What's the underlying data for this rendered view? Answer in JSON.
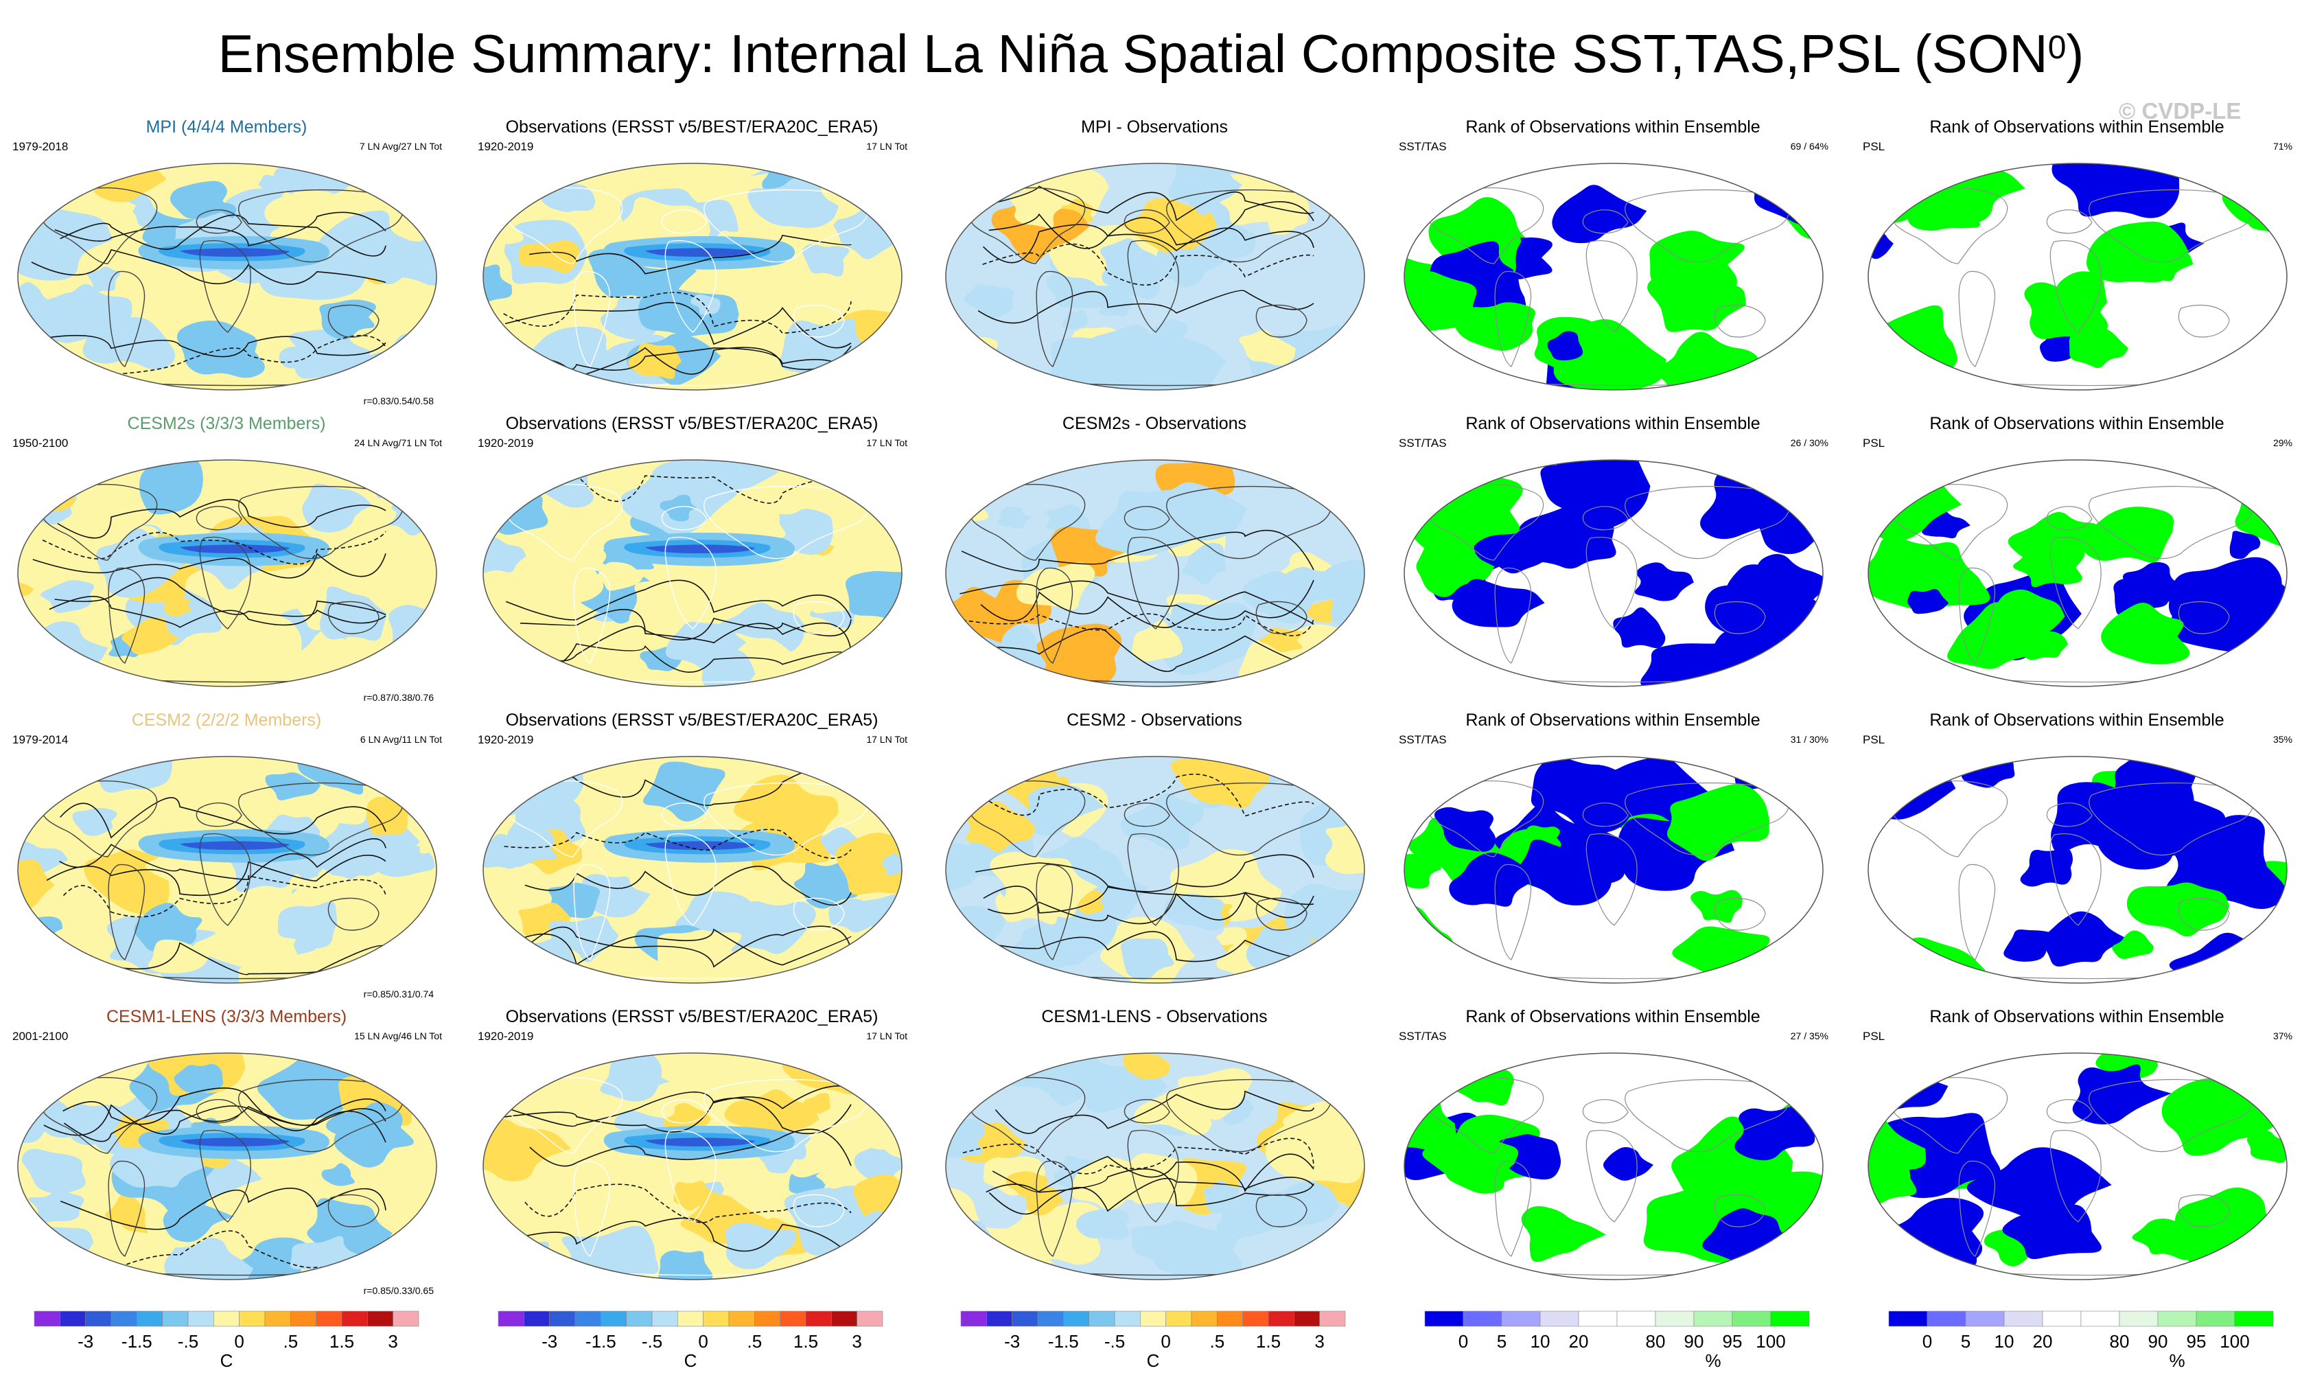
{
  "title_main": "Ensemble Summary: Internal La Niña Spatial Composite SST,TAS,PSL (SON",
  "title_sup": "0",
  "title_close": ")",
  "copyright": "© CVDP-LE",
  "colors": {
    "green": "#00ff00",
    "blue": "#0000e6",
    "coast_dark": "#444444",
    "coast_light": "#ffffff"
  },
  "rows": [
    {
      "model": {
        "title": "MPI (4/4/4 Members)",
        "title_color": "#1f6e9e",
        "period": "1979-2018",
        "count": "7 LN Avg/27 LN Tot",
        "corr": "r=0.83/0.54/0.58"
      },
      "obs": {
        "title": "Observations (ERSST v5/BEST/ERA20C_ERA5)",
        "period": "1920-2019",
        "count": "17 LN Tot"
      },
      "diff": {
        "title": "MPI - Observations"
      },
      "rank1": {
        "title": "Rank of Observations within Ensemble",
        "var": "SST/TAS",
        "pct": "69 /  64%"
      },
      "rank2": {
        "title": "Rank of Observations within Ensemble",
        "var": "PSL",
        "pct": "71%"
      }
    },
    {
      "model": {
        "title": "CESM2s (3/3/3 Members)",
        "title_color": "#5a9d6c",
        "period": "1950-2100",
        "count": "24 LN Avg/71 LN Tot",
        "corr": "r=0.87/0.38/0.76"
      },
      "obs": {
        "title": "Observations (ERSST v5/BEST/ERA20C_ERA5)",
        "period": "1920-2019",
        "count": "17 LN Tot"
      },
      "diff": {
        "title": "CESM2s - Observations"
      },
      "rank1": {
        "title": "Rank of Observations within Ensemble",
        "var": "SST/TAS",
        "pct": "26 /  30%"
      },
      "rank2": {
        "title": "Rank of Observations within Ensemble",
        "var": "PSL",
        "pct": "29%"
      }
    },
    {
      "model": {
        "title": "CESM2 (2/2/2 Members)",
        "title_color": "#e8c57a",
        "period": "1979-2014",
        "count": "6 LN Avg/11 LN Tot",
        "corr": "r=0.85/0.31/0.74"
      },
      "obs": {
        "title": "Observations (ERSST v5/BEST/ERA20C_ERA5)",
        "period": "1920-2019",
        "count": "17 LN Tot"
      },
      "diff": {
        "title": "CESM2 - Observations"
      },
      "rank1": {
        "title": "Rank of Observations within Ensemble",
        "var": "SST/TAS",
        "pct": "31 /  30%"
      },
      "rank2": {
        "title": "Rank of Observations within Ensemble",
        "var": "PSL",
        "pct": "35%"
      }
    },
    {
      "model": {
        "title": "CESM1-LENS (3/3/3 Members)",
        "title_color": "#9c3b1b",
        "period": "2001-2100",
        "count": "15 LN Avg/46 LN Tot",
        "corr": "r=0.85/0.33/0.65"
      },
      "obs": {
        "title": "Observations (ERSST v5/BEST/ERA20C_ERA5)",
        "period": "1920-2019",
        "count": "17 LN Tot"
      },
      "diff": {
        "title": "CESM1-LENS - Observations"
      },
      "rank1": {
        "title": "Rank of Observations within Ensemble",
        "var": "SST/TAS",
        "pct": "27 /  35%"
      },
      "rank2": {
        "title": "Rank of Observations within Ensemble",
        "var": "PSL",
        "pct": "37%"
      }
    }
  ],
  "chart_data": {
    "type": "heatmap",
    "projection": "Robinson (global)",
    "sst_colorbar": {
      "colors": [
        "#8a2be2",
        "#2b2bd6",
        "#2f5bd9",
        "#3a84e6",
        "#3aa8ec",
        "#7cc7f0",
        "#b7dff5",
        "#fdf6a6",
        "#ffdd55",
        "#ffb52e",
        "#ff8c1a",
        "#ff5a1f",
        "#e01f1f",
        "#b30f0f",
        "#f5a9b0"
      ],
      "tick_labels": [
        "-3",
        "-1.5",
        "-.5",
        "0",
        ".5",
        "1.5",
        "3"
      ],
      "unit": "C"
    },
    "rank_colorbar": {
      "colors": [
        "#0000e6",
        "#6b6bff",
        "#a5a5ff",
        "#dcdcf7",
        "#ffffff",
        "#ffffff",
        "#e3f7e3",
        "#b5f5b5",
        "#7fef7f",
        "#00ff00"
      ],
      "tick_labels": [
        "0",
        "5",
        "10",
        "20",
        "80",
        "90",
        "95",
        "100"
      ],
      "unit": "%"
    }
  }
}
